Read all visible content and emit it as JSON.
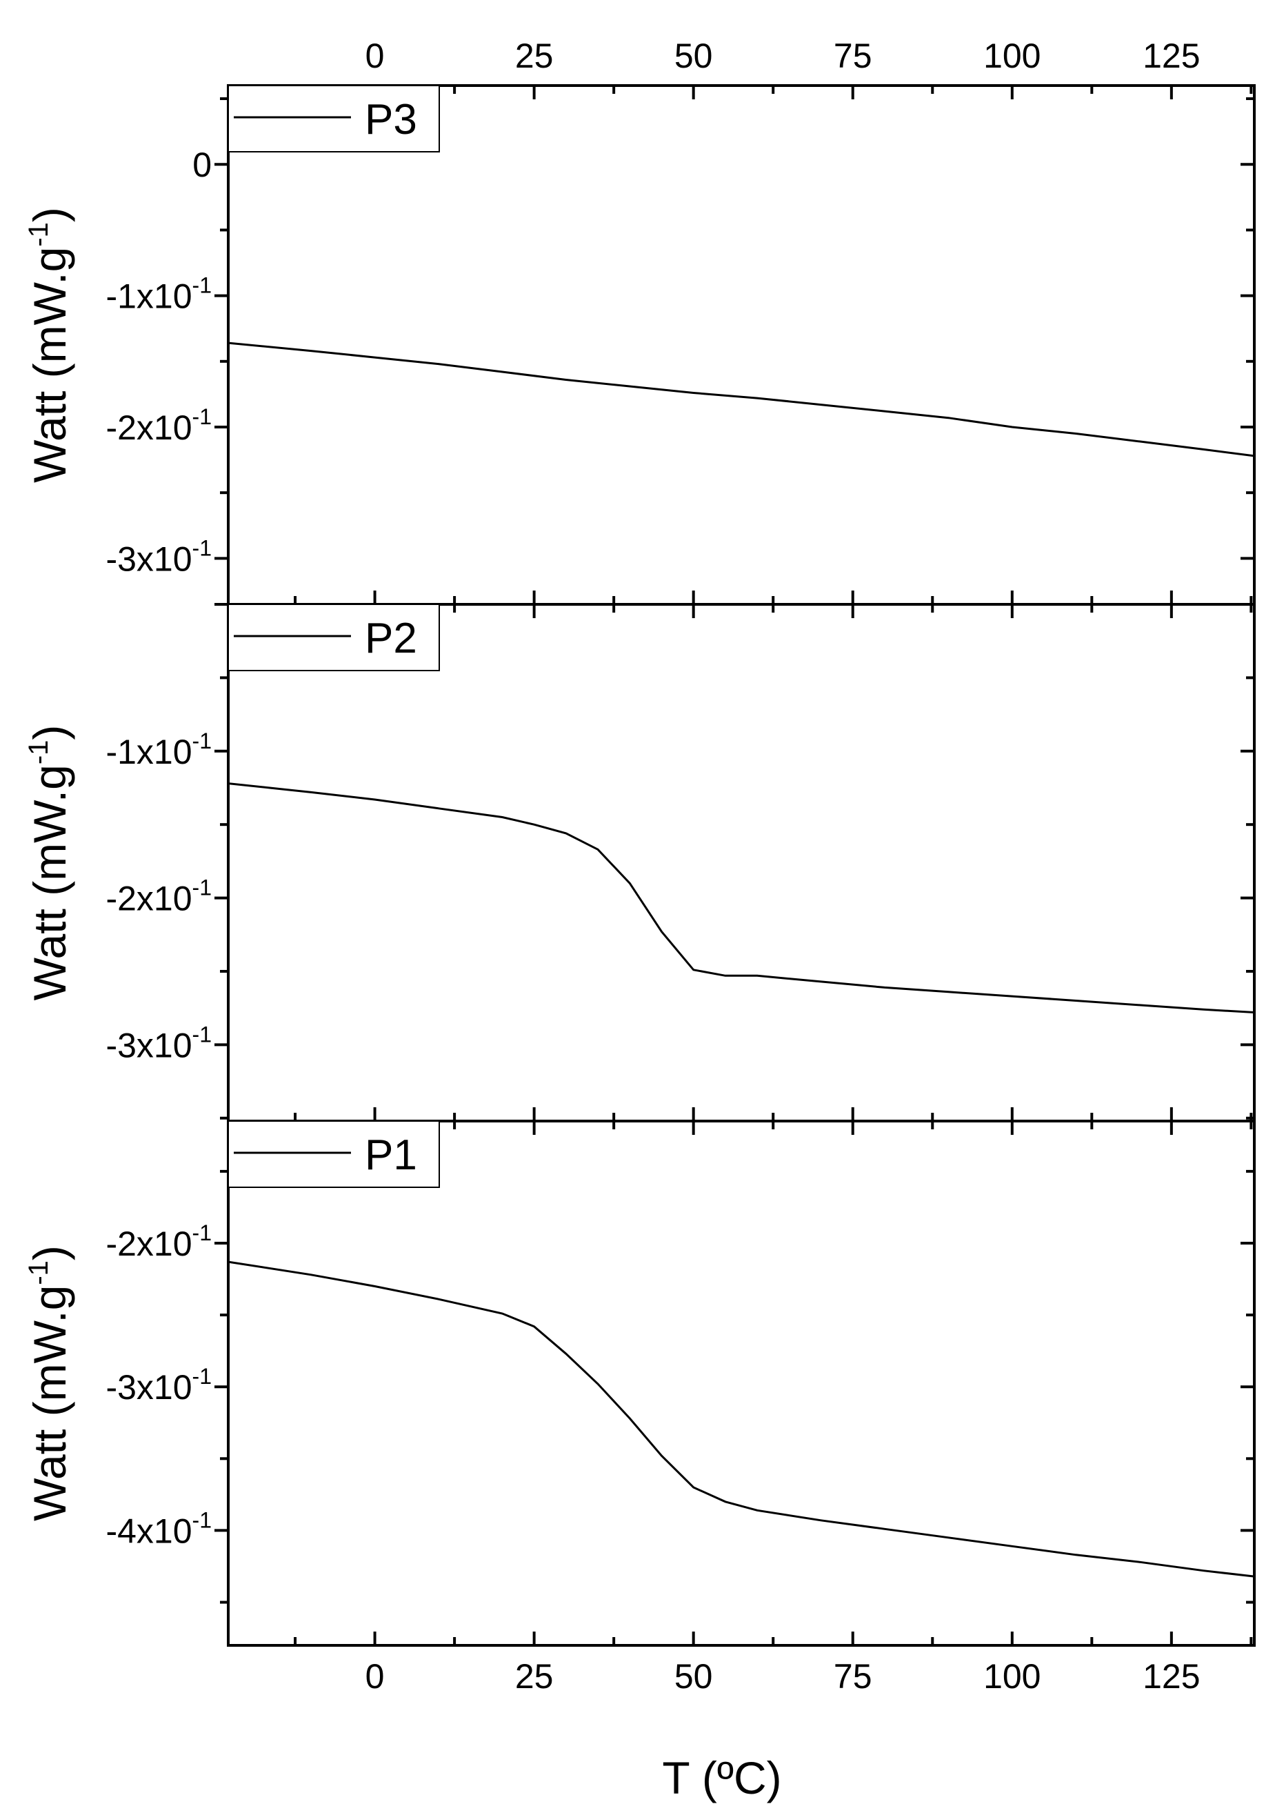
{
  "chart_data": {
    "type": "line",
    "xlabel": "T (ºC)",
    "x_ticks": [
      "0",
      "25",
      "50",
      "75",
      "100",
      "125"
    ],
    "x_tick_values": [
      0,
      25,
      50,
      75,
      100,
      125
    ],
    "xlim": [
      -23,
      138
    ],
    "panels": [
      {
        "legend": "P3",
        "ylabel": "Watt (mW.g",
        "ylabel_sup": "-1",
        "ylabel_close": ")",
        "ylim": [
          -0.335,
          0.06
        ],
        "y_ticks": [
          {
            "value": 0,
            "base": "0",
            "sup": ""
          },
          {
            "value": -0.1,
            "base": "-1x10",
            "sup": "-1"
          },
          {
            "value": -0.2,
            "base": "-2x10",
            "sup": "-1"
          },
          {
            "value": -0.3,
            "base": "-3x10",
            "sup": "-1"
          }
        ],
        "series": [
          {
            "name": "P3",
            "x": [
              -23,
              -10,
              0,
              10,
              20,
              30,
              40,
              50,
              60,
              70,
              80,
              90,
              100,
              110,
              120,
              130,
              138
            ],
            "y": [
              -0.136,
              -0.142,
              -0.147,
              -0.152,
              -0.158,
              -0.164,
              -0.169,
              -0.174,
              -0.178,
              -0.183,
              -0.188,
              -0.193,
              -0.2,
              -0.205,
              -0.211,
              -0.217,
              -0.222
            ]
          }
        ]
      },
      {
        "legend": "P2",
        "ylabel": "Watt (mW.g",
        "ylabel_sup": "-1",
        "ylabel_close": ")",
        "ylim": [
          -0.352,
          0.0
        ],
        "y_ticks": [
          {
            "value": -0.1,
            "base": "-1x10",
            "sup": "-1"
          },
          {
            "value": -0.2,
            "base": "-2x10",
            "sup": "-1"
          },
          {
            "value": -0.3,
            "base": "-3x10",
            "sup": "-1"
          }
        ],
        "series": [
          {
            "name": "P2",
            "x": [
              -23,
              -10,
              0,
              10,
              20,
              25,
              30,
              35,
              40,
              45,
              50,
              55,
              60,
              70,
              80,
              90,
              100,
              110,
              120,
              130,
              138
            ],
            "y": [
              -0.122,
              -0.128,
              -0.133,
              -0.139,
              -0.145,
              -0.15,
              -0.156,
              -0.167,
              -0.19,
              -0.223,
              -0.249,
              -0.253,
              -0.253,
              -0.257,
              -0.261,
              -0.264,
              -0.267,
              -0.27,
              -0.273,
              -0.276,
              -0.278
            ]
          }
        ]
      },
      {
        "legend": "P1",
        "ylabel": "Watt (mW.g",
        "ylabel_sup": "-1",
        "ylabel_close": ")",
        "ylim": [
          -0.48,
          -0.115
        ],
        "y_ticks": [
          {
            "value": -0.2,
            "base": "-2x10",
            "sup": "-1"
          },
          {
            "value": -0.3,
            "base": "-3x10",
            "sup": "-1"
          },
          {
            "value": -0.4,
            "base": "-4x10",
            "sup": "-1"
          }
        ],
        "series": [
          {
            "name": "P1",
            "x": [
              -23,
              -10,
              0,
              10,
              20,
              25,
              30,
              35,
              40,
              45,
              50,
              55,
              60,
              70,
              80,
              90,
              100,
              110,
              120,
              130,
              138
            ],
            "y": [
              -0.213,
              -0.222,
              -0.23,
              -0.239,
              -0.249,
              -0.258,
              -0.277,
              -0.298,
              -0.322,
              -0.348,
              -0.37,
              -0.38,
              -0.386,
              -0.393,
              -0.399,
              -0.405,
              -0.411,
              -0.417,
              -0.422,
              -0.428,
              -0.432
            ]
          }
        ]
      }
    ]
  }
}
